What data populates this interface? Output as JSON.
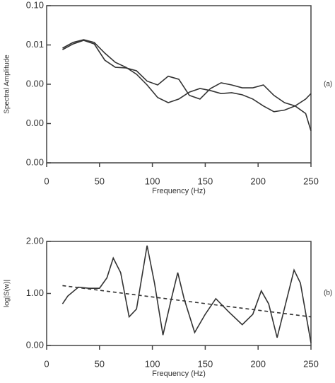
{
  "chart_data": [
    {
      "type": "line",
      "ylabel": "Spectral Amplitude",
      "xlabel": "Frequency (Hz)",
      "annotation": "(a)",
      "log_y": true,
      "xlim": [
        0,
        250
      ],
      "xticks": [
        0,
        50,
        100,
        150,
        200,
        250
      ],
      "ylim": [
        1e-05,
        0.1
      ],
      "yticks": [
        {
          "value": 0.1,
          "label": "0.10"
        },
        {
          "value": 0.01,
          "label": "0.01"
        },
        {
          "value": 0.001,
          "label": "0.00"
        },
        {
          "value": 0.0001,
          "label": "0.00"
        },
        {
          "value": 1e-05,
          "label": "0.00"
        }
      ],
      "series": [
        {
          "color": "#333333",
          "dash": false,
          "x": [
            15,
            25,
            35,
            45,
            55,
            65,
            75,
            85,
            95,
            105,
            115,
            125,
            135,
            145,
            155,
            165,
            175,
            185,
            195,
            205,
            215,
            225,
            235,
            245,
            250
          ],
          "values": [
            0.0083,
            0.0116,
            0.0136,
            0.0116,
            0.0062,
            0.0036,
            0.0027,
            0.0018,
            0.00096,
            0.00046,
            0.00034,
            0.00042,
            0.00063,
            0.00078,
            0.00069,
            0.00058,
            0.00061,
            0.00054,
            0.00042,
            0.00028,
            0.0002,
            0.00022,
            0.00028,
            0.00018,
            6.5e-05
          ]
        },
        {
          "color": "#333333",
          "dash": false,
          "x": [
            15,
            25,
            35,
            45,
            55,
            65,
            75,
            85,
            95,
            105,
            115,
            125,
            135,
            145,
            155,
            165,
            175,
            185,
            195,
            205,
            215,
            225,
            235,
            245,
            250
          ],
          "values": [
            0.0076,
            0.0106,
            0.0131,
            0.0106,
            0.0041,
            0.0027,
            0.0026,
            0.0022,
            0.0012,
            0.00096,
            0.0016,
            0.00134,
            0.00052,
            0.00042,
            0.00078,
            0.00109,
            0.00096,
            0.00081,
            0.00081,
            0.00096,
            0.00052,
            0.00034,
            0.00028,
            0.00042,
            0.00058
          ]
        }
      ]
    },
    {
      "type": "line",
      "ylabel": "log|S(w)|",
      "xlabel": "Frequency (Hz)",
      "annotation": "(b)",
      "log_y": false,
      "xlim": [
        0,
        250
      ],
      "xticks": [
        0,
        50,
        100,
        150,
        200,
        250
      ],
      "ylim": [
        0,
        2
      ],
      "yticks": [
        {
          "value": 0,
          "label": "0.00"
        },
        {
          "value": 1,
          "label": "1.00"
        },
        {
          "value": 2,
          "label": "2.00"
        }
      ],
      "series": [
        {
          "color": "#333333",
          "dash": false,
          "x": [
            15,
            20,
            30,
            40,
            50,
            57,
            63,
            70,
            78,
            85,
            95,
            102,
            110,
            118,
            124,
            130,
            140,
            150,
            160,
            172,
            185,
            195,
            203,
            210,
            218,
            226,
            234,
            240,
            250
          ],
          "values": [
            0.8,
            0.95,
            1.12,
            1.1,
            1.1,
            1.3,
            1.68,
            1.4,
            0.55,
            0.7,
            1.92,
            1.2,
            0.2,
            0.9,
            1.4,
            0.9,
            0.25,
            0.6,
            0.9,
            0.65,
            0.4,
            0.6,
            1.05,
            0.8,
            0.15,
            0.8,
            1.45,
            1.2,
            0.05
          ]
        },
        {
          "color": "#333333",
          "dash": true,
          "x": [
            15,
            250
          ],
          "values": [
            1.15,
            0.55
          ]
        }
      ]
    }
  ]
}
